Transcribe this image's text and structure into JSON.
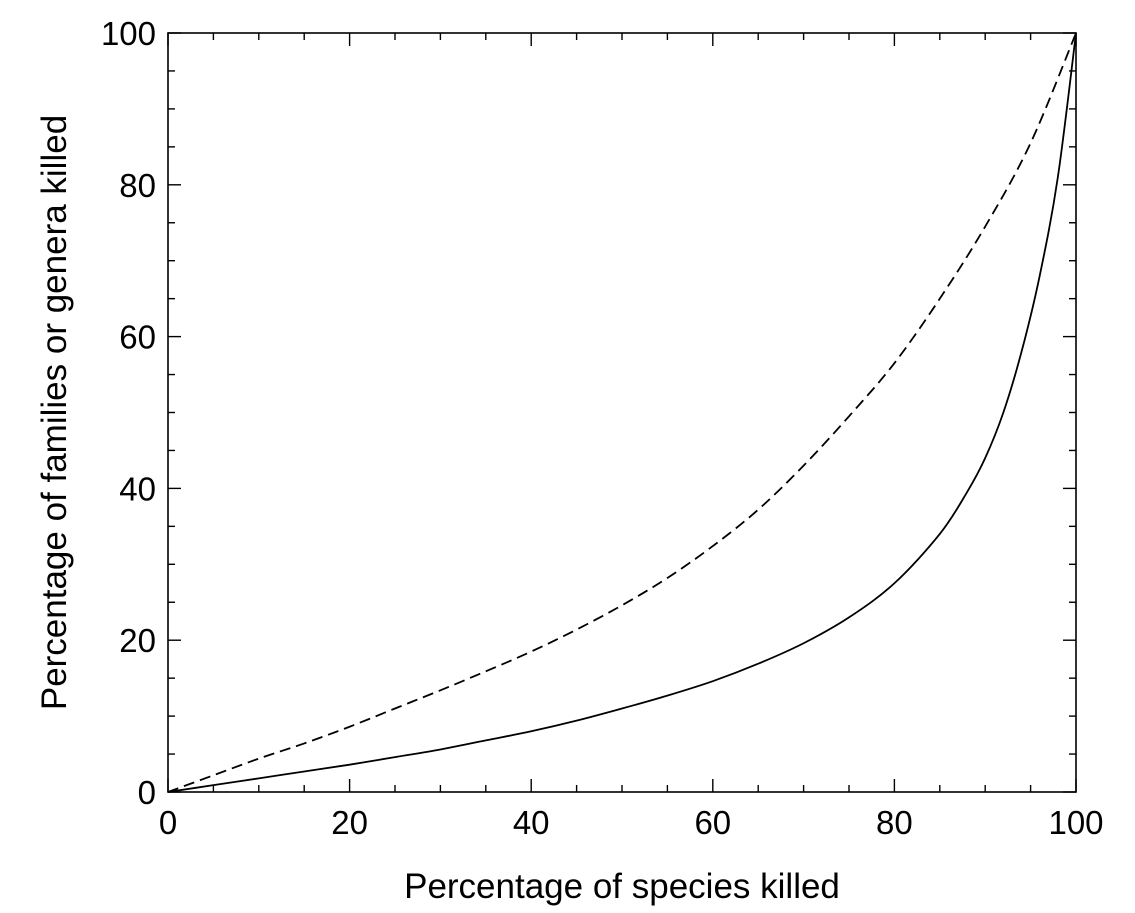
{
  "chart_data": {
    "type": "line",
    "title": "",
    "xlabel": "Percentage of species killed",
    "ylabel": "Percentage of families or genera killed",
    "xlim": [
      0,
      100
    ],
    "ylim": [
      0,
      100
    ],
    "x_major_ticks": [
      0,
      20,
      40,
      60,
      80,
      100
    ],
    "y_major_ticks": [
      0,
      20,
      40,
      60,
      80,
      100
    ],
    "x_tick_labels": [
      "0",
      "20",
      "40",
      "60",
      "80",
      "100"
    ],
    "y_tick_labels": [
      "0",
      "20",
      "40",
      "60",
      "80",
      "100"
    ],
    "minor_tick_step": 5,
    "grid": false,
    "legend": "none",
    "series": [
      {
        "line_style": "solid",
        "color": "#000000",
        "x": [
          0,
          5,
          10,
          15,
          20,
          25,
          30,
          35,
          40,
          45,
          50,
          55,
          60,
          65,
          70,
          75,
          80,
          85,
          88,
          90,
          92,
          94,
          96,
          98,
          100
        ],
        "y": [
          0,
          0.9,
          1.8,
          2.7,
          3.6,
          4.6,
          5.6,
          6.8,
          8.0,
          9.4,
          11.0,
          12.7,
          14.6,
          16.9,
          19.6,
          23.0,
          27.5,
          34.0,
          39.5,
          44.0,
          50.0,
          58.0,
          68.0,
          81.0,
          100
        ]
      },
      {
        "line_style": "dashed",
        "color": "#000000",
        "x": [
          0,
          5,
          10,
          15,
          20,
          25,
          30,
          35,
          40,
          45,
          50,
          55,
          60,
          65,
          70,
          75,
          80,
          85,
          90,
          95,
          100
        ],
        "y": [
          0,
          2.2,
          4.4,
          6.4,
          8.6,
          11.0,
          13.4,
          15.9,
          18.5,
          21.4,
          24.6,
          28.2,
          32.4,
          37.2,
          43.0,
          49.5,
          56.5,
          65.0,
          74.5,
          85.5,
          100
        ]
      }
    ]
  }
}
